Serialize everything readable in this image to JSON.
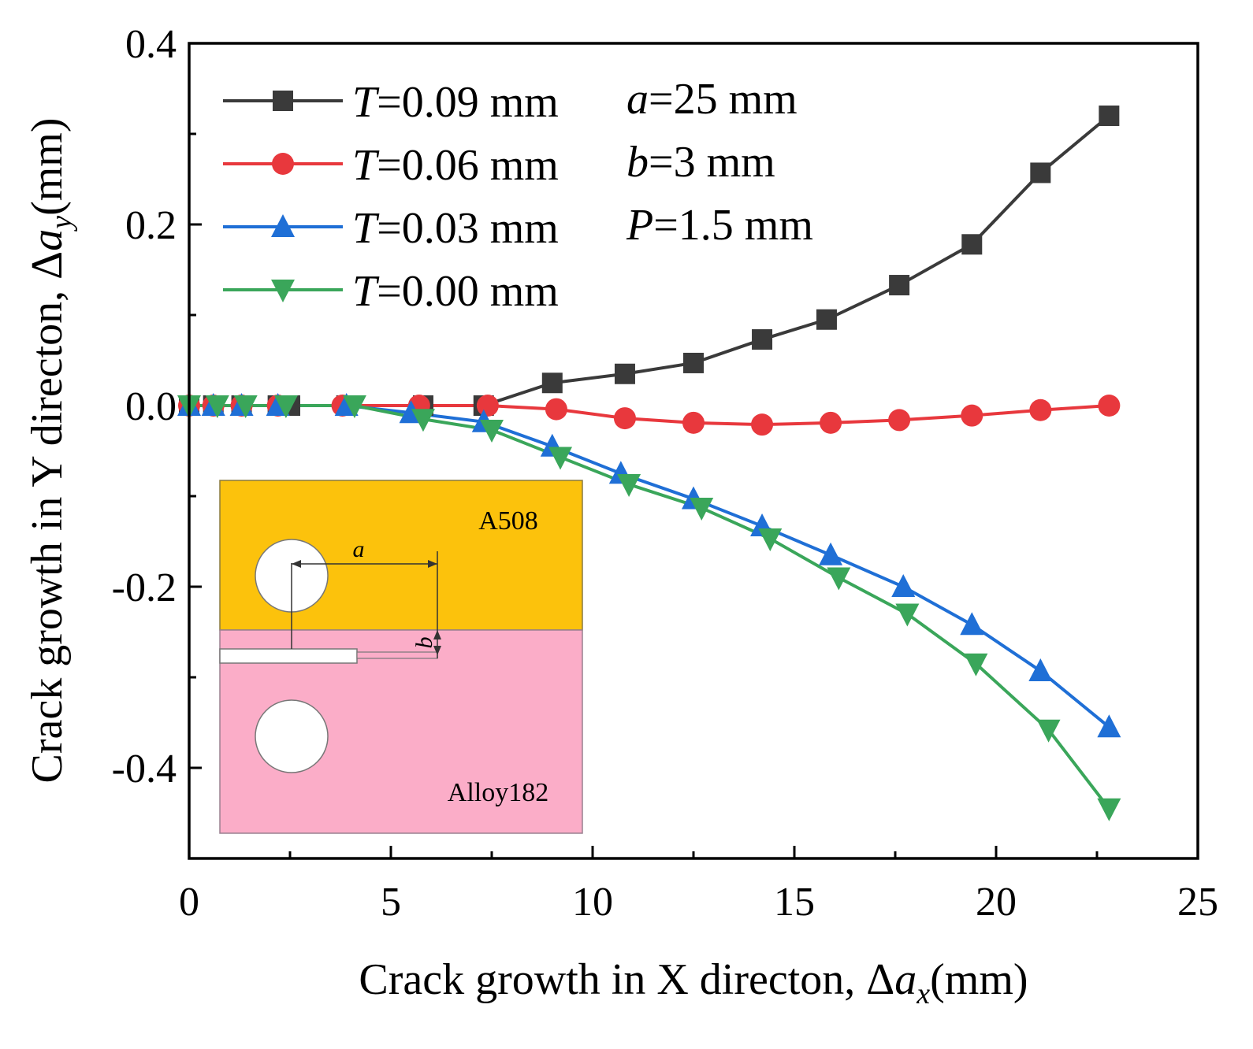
{
  "chart_data": {
    "type": "line",
    "xlabel": {
      "prefix": "Crack growth in X directon, Δ",
      "var": "a",
      "sub": "x",
      "suffix": "(mm)"
    },
    "ylabel": {
      "prefix": "Crack growth in Y directon, Δ",
      "var": "a",
      "sub": "y",
      "suffix": "(mm)"
    },
    "xlim": [
      0,
      25
    ],
    "ylim": [
      -0.5,
      0.4
    ],
    "xticks": [
      0,
      5,
      10,
      15,
      20,
      25
    ],
    "xtick_labels": [
      "0",
      "5",
      "10",
      "15",
      "20",
      "25"
    ],
    "yticks": [
      -0.4,
      -0.2,
      0.0,
      0.2,
      0.4
    ],
    "ytick_labels": [
      "-0.4",
      "-0.2",
      "0.0",
      "0.2",
      "0.4"
    ],
    "legend_position": "top-left",
    "series": [
      {
        "name": "T=0.09 mm",
        "var": "T",
        "text": "=0.09 mm",
        "color": "#3a3a3a",
        "marker": "square",
        "x": [
          0,
          0.6,
          1.3,
          2.2,
          2.5,
          3.9,
          5.8,
          7.3,
          9.0,
          10.8,
          12.5,
          14.2,
          15.8,
          17.6,
          19.4,
          21.1,
          22.8
        ],
        "y": [
          0,
          0,
          0,
          0,
          0,
          0,
          0,
          0,
          0.025,
          0.035,
          0.047,
          0.073,
          0.095,
          0.133,
          0.178,
          0.257,
          0.32
        ]
      },
      {
        "name": "T=0.06 mm",
        "var": "T",
        "text": "=0.06 mm",
        "color": "#e8383d",
        "marker": "circle",
        "x": [
          0,
          0.6,
          1.3,
          2.2,
          3.8,
          5.7,
          7.4,
          9.1,
          10.8,
          12.5,
          14.2,
          15.9,
          17.6,
          19.4,
          21.1,
          22.8
        ],
        "y": [
          0,
          0,
          0,
          0,
          0,
          0,
          0,
          -0.004,
          -0.014,
          -0.019,
          -0.021,
          -0.019,
          -0.016,
          -0.011,
          -0.005,
          0
        ]
      },
      {
        "name": "T=0.03 mm",
        "var": "T",
        "text": "=0.03 mm",
        "color": "#1f6fd6",
        "marker": "triangle-up",
        "x": [
          0,
          0.6,
          1.3,
          2.2,
          3.9,
          5.5,
          7.3,
          9.0,
          10.7,
          12.5,
          14.2,
          15.9,
          17.7,
          19.4,
          21.1,
          22.8
        ],
        "y": [
          0,
          0,
          0,
          0,
          0,
          -0.008,
          -0.018,
          -0.045,
          -0.075,
          -0.103,
          -0.133,
          -0.165,
          -0.2,
          -0.242,
          -0.293,
          -0.355
        ]
      },
      {
        "name": "T=0.00 mm",
        "var": "T",
        "text": "=0.00 mm",
        "color": "#3aa65a",
        "marker": "triangle-down",
        "x": [
          0,
          0.7,
          1.4,
          2.4,
          4.1,
          5.8,
          7.5,
          9.2,
          10.9,
          12.7,
          14.4,
          16.1,
          17.8,
          19.5,
          21.3,
          22.8
        ],
        "y": [
          0,
          0,
          0,
          0,
          0,
          -0.015,
          -0.027,
          -0.057,
          -0.087,
          -0.113,
          -0.147,
          -0.19,
          -0.23,
          -0.285,
          -0.358,
          -0.445
        ]
      }
    ],
    "annotations": [
      {
        "var": "a",
        "text": "=25 mm"
      },
      {
        "var": "b",
        "text": "=3 mm"
      },
      {
        "var": "P",
        "text": "=1.5 mm"
      }
    ],
    "inset": {
      "top_label": "A508",
      "bottom_label": "Alloy182",
      "dim_a": "a",
      "dim_b": "b",
      "top_color": "#fcc20c",
      "bottom_color": "#fbadc8"
    }
  }
}
